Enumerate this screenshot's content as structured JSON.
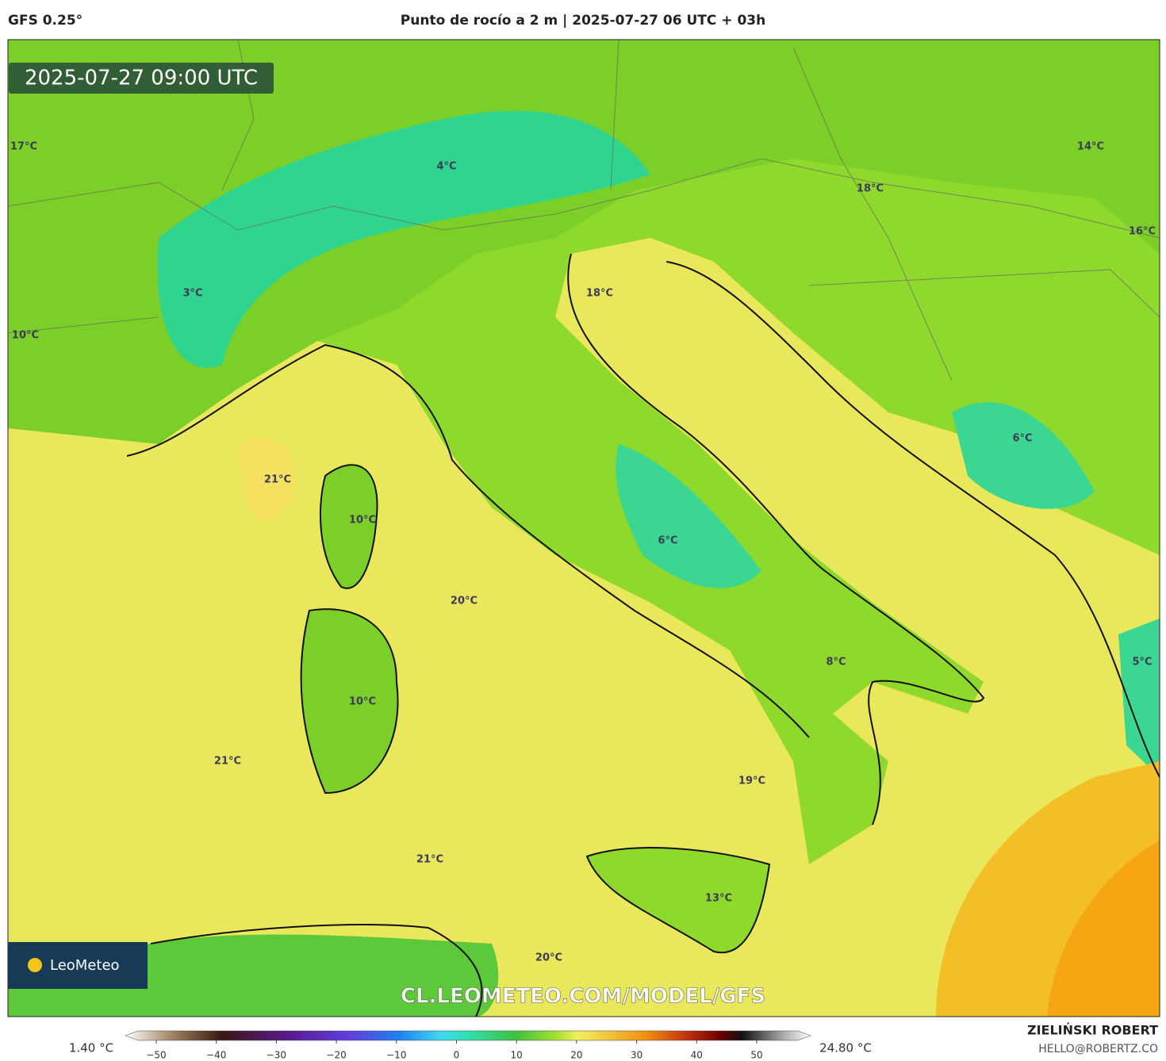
{
  "header": {
    "model": "GFS 0.25°",
    "title": "Punto de rocío a 2 m | 2025-07-27 06 UTC + 03h"
  },
  "map": {
    "valid_time": "2025-07-27 09:00 UTC",
    "labels": [
      "17°C",
      "4°C",
      "14°C",
      "18°C",
      "16°C",
      "3°C",
      "18°C",
      "10°C",
      "6°C",
      "21°C",
      "10°C",
      "6°C",
      "20°C",
      "8°C",
      "5°C",
      "10°C",
      "21°C",
      "19°C",
      "21°C",
      "13°C",
      "20°C"
    ],
    "logo": "LeoMeteo",
    "watermark": "CL.LEOMETEO.COM/MODEL/GFS"
  },
  "colorbar": {
    "min_label": "1.40 °C",
    "max_label": "24.80 °C",
    "ticks": [
      "−50",
      "−40",
      "−30",
      "−20",
      "−10",
      "0",
      "10",
      "20",
      "30",
      "40",
      "50"
    ]
  },
  "footer": {
    "author": "ZIELIŃSKI ROBERT",
    "contact": "HELLO@ROBERTZ.CO"
  }
}
